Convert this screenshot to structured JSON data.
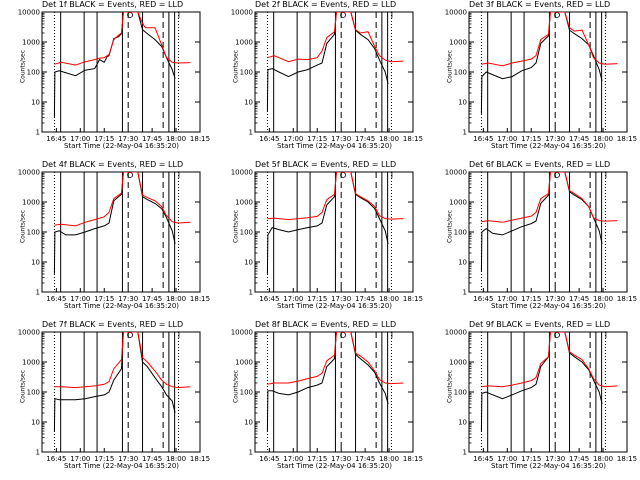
{
  "xlabel": "Start Time (22-May-04 16:35:20)",
  "ylabel": "Counts/sec",
  "xtick_labels": [
    "16:45",
    "17:00",
    "17:15",
    "17:30",
    "17:45",
    "18:00",
    "18:15"
  ],
  "ytick_labels": [
    "1",
    "10",
    "100",
    "1000",
    "10000"
  ],
  "colors": {
    "events": "#000000",
    "lld": "#ff0000"
  },
  "vlines": {
    "solid": [
      16.795,
      17.04,
      17.175,
      17.44,
      17.65,
      17.925,
      17.985
    ],
    "dashed": [
      17.5,
      17.865
    ],
    "dotted": [
      16.73,
      18.025
    ]
  },
  "panels": [
    {
      "title": "Det 1f BLACK = Events, RED = LLD",
      "chart_data": {
        "type": "line",
        "x_unit": "hours UT",
        "xlim": [
          16.6,
          18.25
        ],
        "ylim": [
          1,
          10000
        ],
        "yscale": "log",
        "series": [
          {
            "color": "#000000",
            "x": [
              16.73,
              16.735,
              16.78,
              16.79,
              16.95,
              17.05,
              17.15,
              17.2,
              17.25,
              17.28,
              17.3,
              17.35,
              17.4,
              17.43,
              17.45,
              17.6,
              17.65,
              17.7,
              17.78,
              17.85,
              17.9,
              17.96,
              17.99
            ],
            "y": [
              3,
              100,
              110,
              108,
              75,
              115,
              130,
              260,
              210,
              320,
              350,
              1300,
              1500,
              1900,
              10000,
              10000,
              2600,
              1900,
              1200,
              700,
              300,
              120,
              60
            ]
          },
          {
            "color": "#ff0000",
            "x": [
              16.73,
              16.8,
              16.95,
              17.05,
              17.15,
              17.2,
              17.25,
              17.3,
              17.35,
              17.4,
              17.43,
              17.45,
              17.6,
              17.65,
              17.68,
              17.78,
              17.85,
              17.9,
              17.96,
              18.02,
              18.15
            ],
            "y": [
              180,
              210,
              170,
              220,
              260,
              290,
              300,
              380,
              1200,
              1700,
              2000,
              10000,
              10000,
              4200,
              3000,
              3000,
              800,
              300,
              210,
              200,
              205
            ]
          }
        ]
      }
    },
    {
      "title": "Det 2f BLACK = Events, RED = LLD",
      "chart_data": {
        "type": "line",
        "x_unit": "hours UT",
        "xlim": [
          16.6,
          18.25
        ],
        "ylim": [
          1,
          10000
        ],
        "yscale": "log",
        "series": [
          {
            "color": "#000000",
            "x": [
              16.73,
              16.735,
              16.78,
              16.85,
              16.95,
              17.05,
              17.15,
              17.25,
              17.3,
              17.35,
              17.43,
              17.45,
              17.6,
              17.65,
              17.7,
              17.78,
              17.85,
              17.9,
              17.96,
              17.99
            ],
            "y": [
              5,
              120,
              130,
              100,
              70,
              100,
              120,
              170,
              200,
              900,
              1800,
              10000,
              10000,
              2500,
              1800,
              1200,
              600,
              250,
              100,
              40
            ]
          },
          {
            "color": "#ff0000",
            "x": [
              16.73,
              16.8,
              16.95,
              17.05,
              17.15,
              17.25,
              17.3,
              17.35,
              17.43,
              17.45,
              17.6,
              17.65,
              17.7,
              17.78,
              17.85,
              17.9,
              17.96,
              18.02,
              18.15
            ],
            "y": [
              300,
              350,
              220,
              270,
              260,
              300,
              500,
              1400,
              2200,
              10000,
              10000,
              2600,
              2000,
              2200,
              700,
              350,
              250,
              220,
              230
            ]
          }
        ]
      }
    },
    {
      "title": "Det 3f BLACK = Events, RED = LLD",
      "chart_data": {
        "type": "line",
        "x_unit": "hours UT",
        "xlim": [
          16.6,
          18.25
        ],
        "ylim": [
          1,
          10000
        ],
        "yscale": "log",
        "series": [
          {
            "color": "#000000",
            "x": [
              16.73,
              16.735,
              16.78,
              16.95,
              17.05,
              17.15,
              17.25,
              17.3,
              17.35,
              17.43,
              17.45,
              17.6,
              17.65,
              17.7,
              17.78,
              17.85,
              17.9,
              17.96,
              17.99
            ],
            "y": [
              4,
              70,
              100,
              60,
              70,
              110,
              140,
              200,
              900,
              1600,
              10000,
              10000,
              2500,
              1900,
              1300,
              800,
              350,
              120,
              50
            ]
          },
          {
            "color": "#ff0000",
            "x": [
              16.73,
              16.8,
              16.95,
              17.05,
              17.15,
              17.25,
              17.3,
              17.35,
              17.43,
              17.45,
              17.6,
              17.65,
              17.7,
              17.78,
              17.85,
              17.9,
              17.96,
              18.02,
              18.15
            ],
            "y": [
              180,
              200,
              160,
              200,
              230,
              270,
              350,
              1200,
              1800,
              10000,
              10000,
              3000,
              2300,
              2500,
              800,
              300,
              200,
              180,
              190
            ]
          }
        ]
      }
    },
    {
      "title": "Det 4f BLACK = Events, RED = LLD",
      "chart_data": {
        "type": "line",
        "x_unit": "hours UT",
        "xlim": [
          16.6,
          18.25
        ],
        "ylim": [
          1,
          10000
        ],
        "yscale": "log",
        "series": [
          {
            "color": "#000000",
            "x": [
              16.73,
              16.735,
              16.78,
              16.85,
              16.95,
              17.05,
              17.15,
              17.25,
              17.3,
              17.35,
              17.43,
              17.45,
              17.6,
              17.65,
              17.7,
              17.78,
              17.85,
              17.9,
              17.96,
              17.99
            ],
            "y": [
              4,
              100,
              110,
              80,
              80,
              100,
              130,
              160,
              200,
              1100,
              1800,
              10000,
              10000,
              1500,
              1200,
              900,
              600,
              300,
              110,
              40
            ]
          },
          {
            "color": "#ff0000",
            "x": [
              16.73,
              16.8,
              16.95,
              17.05,
              17.15,
              17.25,
              17.3,
              17.35,
              17.43,
              17.45,
              17.6,
              17.65,
              17.7,
              17.78,
              17.85,
              17.9,
              17.96,
              18.02,
              18.15
            ],
            "y": [
              170,
              180,
              160,
              210,
              260,
              320,
              450,
              1300,
              2000,
              10000,
              10000,
              1700,
              1400,
              1100,
              700,
              350,
              220,
              200,
              210
            ]
          }
        ]
      }
    },
    {
      "title": "Det 5f BLACK = Events, RED = LLD",
      "chart_data": {
        "type": "line",
        "x_unit": "hours UT",
        "xlim": [
          16.6,
          18.25
        ],
        "ylim": [
          1,
          10000
        ],
        "yscale": "log",
        "series": [
          {
            "color": "#000000",
            "x": [
              16.73,
              16.735,
              16.78,
              16.85,
              16.95,
              17.05,
              17.15,
              17.25,
              17.3,
              17.35,
              17.43,
              17.45,
              17.6,
              17.65,
              17.7,
              17.78,
              17.85,
              17.9,
              17.96,
              17.99
            ],
            "y": [
              4,
              80,
              140,
              120,
              100,
              120,
              140,
              160,
              200,
              800,
              1500,
              10000,
              10000,
              1800,
              1400,
              1000,
              600,
              280,
              110,
              40
            ]
          },
          {
            "color": "#ff0000",
            "x": [
              16.73,
              16.8,
              16.95,
              17.05,
              17.15,
              17.25,
              17.3,
              17.35,
              17.43,
              17.45,
              17.6,
              17.65,
              17.7,
              17.78,
              17.85,
              17.9,
              17.96,
              18.02,
              18.15
            ],
            "y": [
              280,
              290,
              260,
              280,
              300,
              330,
              450,
              1200,
              1800,
              10000,
              10000,
              1900,
              1500,
              1100,
              700,
              350,
              280,
              270,
              280
            ]
          }
        ]
      }
    },
    {
      "title": "Det 6f BLACK = Events, RED = LLD",
      "chart_data": {
        "type": "line",
        "x_unit": "hours UT",
        "xlim": [
          16.6,
          18.25
        ],
        "ylim": [
          1,
          10000
        ],
        "yscale": "log",
        "series": [
          {
            "color": "#000000",
            "x": [
              16.73,
              16.735,
              16.78,
              16.85,
              16.95,
              17.05,
              17.15,
              17.25,
              17.3,
              17.35,
              17.43,
              17.45,
              17.6,
              17.65,
              17.7,
              17.78,
              17.85,
              17.9,
              17.96,
              17.99
            ],
            "y": [
              5,
              100,
              130,
              90,
              80,
              110,
              150,
              190,
              230,
              900,
              1700,
              10000,
              10000,
              2200,
              1700,
              1200,
              700,
              300,
              110,
              40
            ]
          },
          {
            "color": "#ff0000",
            "x": [
              16.73,
              16.8,
              16.95,
              17.05,
              17.15,
              17.25,
              17.3,
              17.35,
              17.43,
              17.45,
              17.6,
              17.65,
              17.7,
              17.78,
              17.85,
              17.9,
              17.96,
              18.02,
              18.15
            ],
            "y": [
              220,
              240,
              210,
              250,
              290,
              340,
              450,
              1300,
              1900,
              10000,
              10000,
              2400,
              1900,
              1300,
              700,
              300,
              240,
              230,
              240
            ]
          }
        ]
      }
    },
    {
      "title": "Det 7f BLACK = Events, RED = LLD",
      "chart_data": {
        "type": "line",
        "x_unit": "hours UT",
        "xlim": [
          16.6,
          18.25
        ],
        "ylim": [
          1,
          10000
        ],
        "yscale": "log",
        "series": [
          {
            "color": "#000000",
            "x": [
              16.73,
              16.735,
              16.78,
              16.85,
              16.95,
              17.05,
              17.15,
              17.25,
              17.3,
              17.35,
              17.43,
              17.45,
              17.6,
              17.65,
              17.7,
              17.78,
              17.85,
              17.9,
              17.96,
              17.99
            ],
            "y": [
              5,
              60,
              55,
              55,
              55,
              60,
              70,
              80,
              100,
              250,
              600,
              10000,
              10000,
              1000,
              700,
              300,
              150,
              80,
              50,
              20
            ]
          },
          {
            "color": "#ff0000",
            "x": [
              16.73,
              16.8,
              16.95,
              17.05,
              17.15,
              17.25,
              17.3,
              17.35,
              17.43,
              17.45,
              17.6,
              17.65,
              17.7,
              17.78,
              17.85,
              17.9,
              17.96,
              18.02,
              18.15
            ],
            "y": [
              150,
              150,
              140,
              150,
              160,
              180,
              220,
              600,
              1200,
              10000,
              10000,
              1400,
              1000,
              500,
              250,
              180,
              150,
              140,
              150
            ]
          }
        ]
      }
    },
    {
      "title": "Det 8f BLACK = Events, RED = LLD",
      "chart_data": {
        "type": "line",
        "x_unit": "hours UT",
        "xlim": [
          16.6,
          18.25
        ],
        "ylim": [
          1,
          10000
        ],
        "yscale": "log",
        "series": [
          {
            "color": "#000000",
            "x": [
              16.73,
              16.735,
              16.78,
              16.85,
              16.95,
              17.05,
              17.15,
              17.25,
              17.3,
              17.35,
              17.43,
              17.45,
              17.6,
              17.65,
              17.7,
              17.78,
              17.85,
              17.9,
              17.96,
              17.99
            ],
            "y": [
              5,
              110,
              110,
              90,
              80,
              100,
              140,
              170,
              200,
              700,
              1300,
              10000,
              10000,
              1800,
              1300,
              800,
              450,
              200,
              90,
              40
            ]
          },
          {
            "color": "#ff0000",
            "x": [
              16.73,
              16.8,
              16.95,
              17.05,
              17.15,
              17.25,
              17.3,
              17.35,
              17.43,
              17.45,
              17.6,
              17.65,
              17.7,
              17.78,
              17.85,
              17.9,
              17.96,
              18.02,
              18.15
            ],
            "y": [
              180,
              200,
              200,
              230,
              280,
              330,
              420,
              1100,
              1700,
              10000,
              10000,
              2000,
              1600,
              1000,
              500,
              260,
              200,
              190,
              200
            ]
          }
        ]
      }
    },
    {
      "title": "Det 9f BLACK = Events, RED = LLD",
      "chart_data": {
        "type": "line",
        "x_unit": "hours UT",
        "xlim": [
          16.6,
          18.25
        ],
        "ylim": [
          1,
          10000
        ],
        "yscale": "log",
        "series": [
          {
            "color": "#000000",
            "x": [
              16.73,
              16.735,
              16.78,
              16.85,
              16.95,
              17.05,
              17.15,
              17.25,
              17.3,
              17.35,
              17.43,
              17.45,
              17.6,
              17.65,
              17.7,
              17.78,
              17.85,
              17.9,
              17.96,
              17.99
            ],
            "y": [
              5,
              90,
              100,
              80,
              60,
              80,
              110,
              140,
              180,
              700,
              1500,
              10000,
              10000,
              2000,
              1500,
              1000,
              550,
              250,
              100,
              40
            ]
          },
          {
            "color": "#ff0000",
            "x": [
              16.73,
              16.8,
              16.95,
              17.05,
              17.15,
              17.25,
              17.3,
              17.35,
              17.43,
              17.45,
              17.6,
              17.65,
              17.7,
              17.78,
              17.85,
              17.9,
              17.96,
              18.02,
              18.15
            ],
            "y": [
              150,
              160,
              150,
              170,
              200,
              240,
              300,
              900,
              1500,
              10000,
              10000,
              2200,
              1700,
              1200,
              600,
              280,
              170,
              150,
              160
            ]
          }
        ]
      }
    }
  ]
}
